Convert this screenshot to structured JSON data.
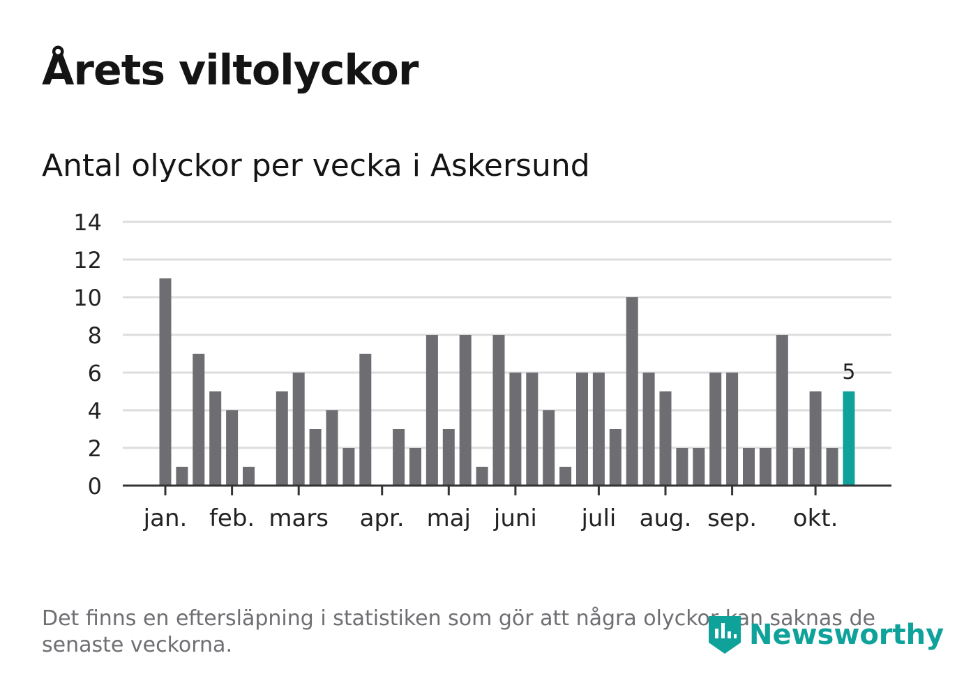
{
  "title": "Årets viltolyckor",
  "subtitle": "Antal olyckor per vecka i Askersund",
  "footnote": "Det finns en eftersläpning i statistiken som gör att några olyckor kan saknas de senaste veckorna.",
  "brand": {
    "name": "Newsworthy",
    "icon": "newsworthy-logo-icon"
  },
  "colors": {
    "bar": "#6e6d72",
    "highlight": "#0ea29a",
    "grid": "#dddddd",
    "axis": "#333333"
  },
  "chart_data": {
    "type": "bar",
    "title": "Årets viltolyckor",
    "subtitle": "Antal olyckor per vecka i Askersund",
    "xlabel": "",
    "ylabel": "",
    "ylim": [
      0,
      14
    ],
    "yticks": [
      0,
      2,
      4,
      6,
      8,
      10,
      12,
      14
    ],
    "grid": true,
    "weeks": [
      1,
      2,
      3,
      4,
      5,
      6,
      7,
      8,
      9,
      10,
      11,
      12,
      13,
      14,
      15,
      16,
      17,
      18,
      19,
      20,
      21,
      22,
      23,
      24,
      25,
      26,
      27,
      28,
      29,
      30,
      31,
      32,
      33,
      34,
      35,
      36,
      37,
      38,
      39,
      40,
      41,
      42
    ],
    "values": [
      11,
      1,
      7,
      5,
      4,
      1,
      0,
      5,
      6,
      3,
      4,
      2,
      7,
      0,
      3,
      2,
      8,
      3,
      8,
      1,
      8,
      6,
      6,
      4,
      1,
      6,
      6,
      3,
      10,
      6,
      5,
      2,
      2,
      6,
      6,
      2,
      2,
      8,
      2,
      5,
      2,
      5
    ],
    "highlight_index": 41,
    "highlight_label": "5",
    "month_labels": [
      {
        "label": "jan.",
        "week_pos": 1
      },
      {
        "label": "feb.",
        "week_pos": 5
      },
      {
        "label": "mars",
        "week_pos": 9
      },
      {
        "label": "apr.",
        "week_pos": 14
      },
      {
        "label": "maj",
        "week_pos": 18
      },
      {
        "label": "juni",
        "week_pos": 22
      },
      {
        "label": "juli",
        "week_pos": 27
      },
      {
        "label": "aug.",
        "week_pos": 31
      },
      {
        "label": "sep.",
        "week_pos": 35
      },
      {
        "label": "okt.",
        "week_pos": 40
      }
    ]
  }
}
